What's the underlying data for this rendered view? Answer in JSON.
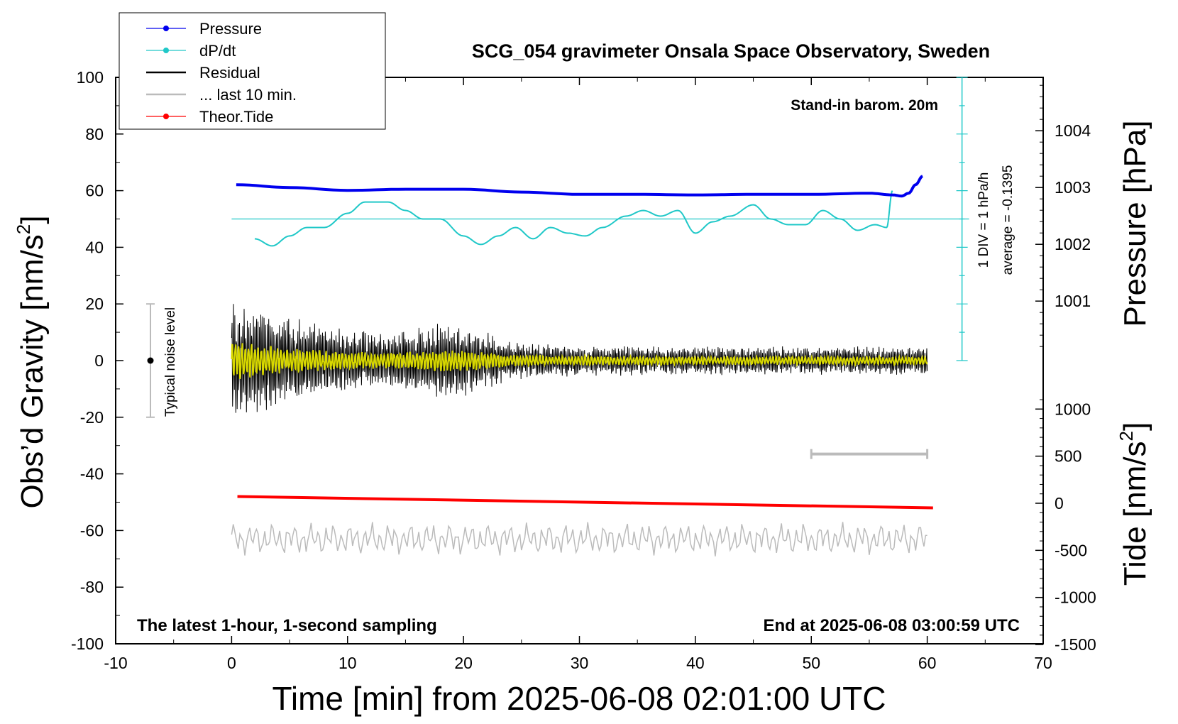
{
  "chart_data": {
    "type": "line",
    "title": "SCG_054 gravimeter Onsala Space Observatory, Sweden",
    "xlabel": "Time [min] from 2025-06-08 02:01:00 UTC",
    "ylabel_main": "Obs’d Gravity [nm/s",
    "ylabel_main_sup": "2",
    "ylabel_main_end": "]",
    "ylabel_pressure": "Pressure [hPa]",
    "ylabel_tide": "Tide [nm/s",
    "ylabel_tide_sup": "2",
    "ylabel_tide_end": "]",
    "xlim": [
      -10,
      70
    ],
    "ylim": [
      -100,
      100
    ],
    "x_ticks": [
      "-10",
      "0",
      "10",
      "20",
      "30",
      "40",
      "50",
      "60",
      "70"
    ],
    "y_ticks": [
      "100",
      "80",
      "60",
      "40",
      "20",
      "0",
      "-20",
      "-40",
      "-60",
      "-80",
      "-100"
    ],
    "pressure_ticks": [
      "1004",
      "1003",
      "1002",
      "1001"
    ],
    "pressure_tick_values": [
      1004,
      1003,
      1002,
      1001
    ],
    "tide_ticks": [
      "1000",
      "500",
      "0",
      "-500",
      "-1000",
      "-1500"
    ],
    "tide_tick_values": [
      1000,
      500,
      0,
      -500,
      -1000,
      -1500
    ],
    "annotations": {
      "barometer": "Stand-in barom. 20m",
      "latest": "The latest 1-hour, 1-second sampling",
      "end": "End at 2025-06-08 03:00:59 UTC",
      "div": "1 DIV = 1 hPa/h",
      "average": "average = -0.1395",
      "noise": "Typical noise level"
    },
    "legend": [
      {
        "label": "Pressure",
        "color": "#0000ee",
        "marker": true
      },
      {
        "label": "dP/dt",
        "color": "#20c8c8",
        "marker": true
      },
      {
        "label": "Residual",
        "color": "#000000",
        "marker": false
      },
      {
        "label": "... last 10 min.",
        "color": "#bbbbbb",
        "marker": false
      },
      {
        "label": "Theor.Tide",
        "color": "#ff0000",
        "marker": true
      }
    ],
    "colors": {
      "pressure": "#0000ee",
      "dpdt": "#20c8c8",
      "residual": "#000000",
      "residual_smooth": "#d8d800",
      "last10": "#bbbbbb",
      "tide": "#ff0000"
    },
    "series": [
      {
        "name": "Pressure",
        "unit": "hPa",
        "x": [
          0.4,
          5,
          10,
          15,
          20,
          25,
          30,
          35,
          40,
          45,
          50,
          55,
          57,
          57.8,
          58.4,
          59,
          59.6
        ],
        "values": [
          1003.05,
          1003.0,
          1002.95,
          1002.97,
          1002.97,
          1002.92,
          1002.88,
          1002.88,
          1002.87,
          1002.88,
          1002.88,
          1002.9,
          1002.87,
          1002.85,
          1002.9,
          1003.05,
          1003.2
        ]
      },
      {
        "name": "dP/dt",
        "unit": "nm/s2 plot scale",
        "x": [
          2,
          3.5,
          5,
          6.5,
          8,
          10,
          11.5,
          13.5,
          15,
          16.5,
          18,
          20,
          21.5,
          23,
          24.5,
          26,
          27.5,
          29,
          30.5,
          32,
          34,
          35.5,
          37,
          38.5,
          40,
          41.5,
          43,
          45,
          46.5,
          48,
          49.5,
          51,
          52.5,
          54,
          55.5,
          56.5,
          57
        ],
        "values": [
          43,
          40.5,
          44,
          47,
          47,
          52,
          56,
          56,
          53,
          50,
          50,
          44,
          41,
          44,
          47,
          43,
          47,
          45,
          44,
          47,
          51,
          53,
          51,
          53,
          45,
          49,
          51,
          55,
          50,
          48,
          48,
          53,
          50,
          46,
          48,
          47,
          60
        ]
      },
      {
        "name": "dP/dt average",
        "unit": "nm/s2 plot scale",
        "x": [
          0,
          63
        ],
        "values": [
          50,
          50
        ]
      },
      {
        "name": "Residual",
        "unit": "nm/s2",
        "x": [
          0,
          60
        ],
        "envelope_amplitude": [
          24,
          5
        ],
        "note": "1-second sampling residual oscillating around 0"
      },
      {
        "name": "... last 10 min.",
        "unit": "nm/s2",
        "x": [
          0,
          60
        ],
        "values": [
          -63,
          -63
        ],
        "note": "offset trace oscillating between about -57 and -68"
      },
      {
        "name": "Theor.Tide",
        "unit": "nm/s2",
        "x": [
          0.5,
          60.5
        ],
        "values": [
          -48,
          -52
        ]
      }
    ],
    "noise_bar": {
      "x": -7,
      "center": 0,
      "low": -20,
      "high": 20
    },
    "ten_min_bar": {
      "x_start": 50,
      "x_end": 60,
      "y": -33
    },
    "dpdt_scale": {
      "x": 63,
      "y_start": 0,
      "y_end": 100,
      "div_minor": 4
    }
  }
}
